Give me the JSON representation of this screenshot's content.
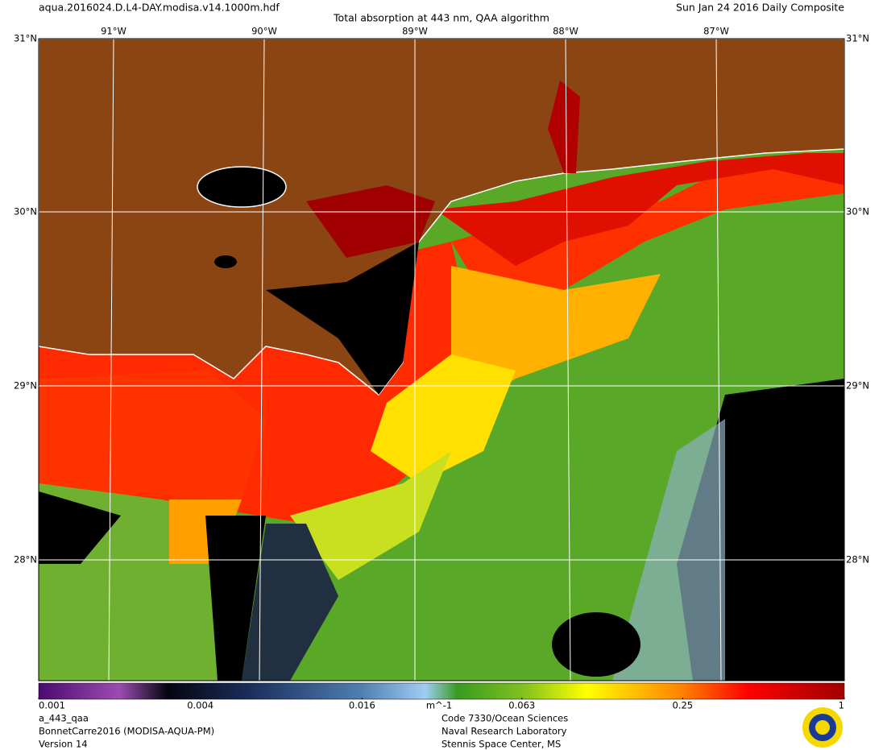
{
  "header": {
    "file": "aqua.2016024.D.L4-DAY.modisa.v14.1000m.hdf",
    "title": "Total absorption at 443 nm, QAA algorithm",
    "date": "Sun Jan 24 2016 Daily Composite"
  },
  "map": {
    "latitudes": [
      "31°N",
      "30°N",
      "29°N",
      "28°N"
    ],
    "longitudes": [
      "91°W",
      "90°W",
      "89°W",
      "88°W",
      "87°W"
    ]
  },
  "colorbar": {
    "lim": [
      0.001,
      1
    ],
    "ticks": [
      0.001,
      0.004,
      0.016,
      0.063,
      0.25,
      1
    ],
    "unit": "m^-1",
    "log": true
  },
  "footer": {
    "product": "a_443_qaa",
    "dataset": "BonnetCarre2016 (MODISA-AQUA-PM)",
    "version": "Version 14",
    "org1": "Code 7330/Ocean Sciences",
    "org2": "Naval Research Laboratory",
    "org3": "Stennis Space Center, MS"
  }
}
